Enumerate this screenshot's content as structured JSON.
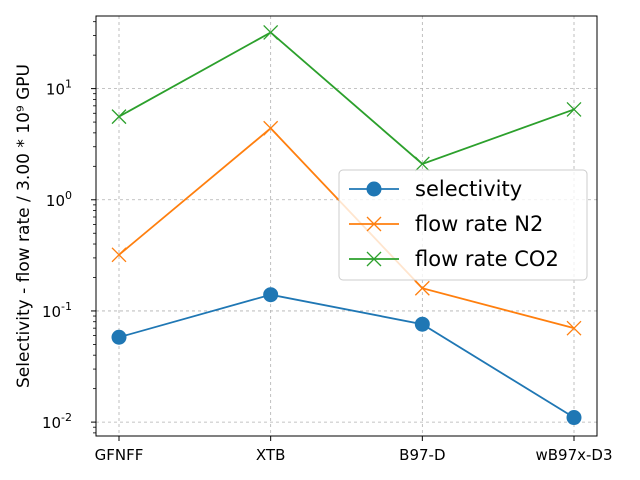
{
  "chart_data": {
    "type": "line",
    "yscale": "log",
    "ylabel": "Selectivity - flow rate / 3.00 * 10⁹ GPU",
    "xlabel": "",
    "categories": [
      "GFNFF",
      "XTB",
      "B97-D",
      "wB97x-D3"
    ],
    "ylim": [
      0.0075,
      45
    ],
    "yticks": [
      {
        "value": 0.01,
        "exp": "-2"
      },
      {
        "value": 0.1,
        "exp": "-1"
      },
      {
        "value": 1,
        "exp": "0"
      },
      {
        "value": 10,
        "exp": "1"
      }
    ],
    "tick_base": "10",
    "grid": true,
    "legend_position": "center-right",
    "series": [
      {
        "name": "selectivity",
        "color": "#1f77b4",
        "marker": "circle",
        "values": [
          0.058,
          0.14,
          0.076,
          0.011
        ]
      },
      {
        "name": "flow rate N2",
        "color": "#ff7f0e",
        "marker": "x",
        "values": [
          0.32,
          4.4,
          0.16,
          0.07
        ]
      },
      {
        "name": "flow rate CO2",
        "color": "#2ca02c",
        "marker": "x",
        "values": [
          5.6,
          32,
          2.1,
          6.5
        ]
      }
    ]
  }
}
